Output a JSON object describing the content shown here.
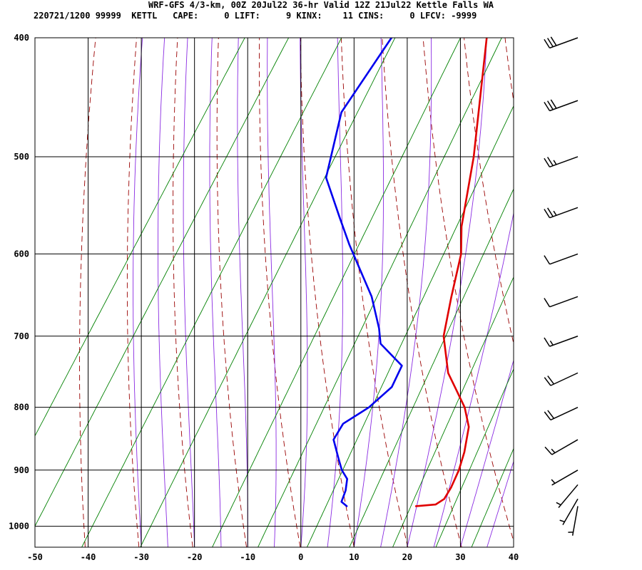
{
  "header": {
    "title": "WRF-GFS 4/3-km, 00Z 20Jul22 36-hr Valid 12Z 21Jul22 Kettle Falls WA",
    "subtitle": "220721/1200 99999  KETTL   CAPE:     0 LIFT:     9 KINX:    11 CINS:     0 LFCV: -9999"
  },
  "chart_data": {
    "type": "line",
    "subtype": "skew-T log-p sounding",
    "y_scale": "log",
    "y_reversed": true,
    "ylim": [
      1040,
      400
    ],
    "xlim": [
      -50,
      40
    ],
    "x_ticks": [
      -50,
      -40,
      -30,
      -20,
      -10,
      0,
      10,
      20,
      30,
      40
    ],
    "y_ticks": [
      400,
      500,
      600,
      700,
      800,
      900,
      1000
    ],
    "grid": true,
    "series": [
      {
        "role": "temperature",
        "color": "#e00000",
        "points": [
          [
            -22.6,
            400
          ],
          [
            -11.6,
            500
          ],
          [
            -6,
            570
          ],
          [
            -3,
            600
          ],
          [
            0,
            650
          ],
          [
            3,
            700
          ],
          [
            8,
            750
          ],
          [
            15,
            800
          ],
          [
            18,
            830
          ],
          [
            20,
            870
          ],
          [
            21,
            900
          ],
          [
            21.5,
            930
          ],
          [
            21.5,
            950
          ],
          [
            20.5,
            960
          ],
          [
            17,
            963
          ]
        ]
      },
      {
        "role": "dewpoint",
        "color": "#0000ee",
        "points": [
          [
            -40.5,
            400
          ],
          [
            -41.5,
            460
          ],
          [
            -37,
            520
          ],
          [
            -30,
            560
          ],
          [
            -25,
            590
          ],
          [
            -15,
            650
          ],
          [
            -10,
            690
          ],
          [
            -8,
            710
          ],
          [
            -1.5,
            740
          ],
          [
            -1,
            770
          ],
          [
            -3,
            800
          ],
          [
            -6,
            825
          ],
          [
            -6,
            850
          ],
          [
            -3,
            880
          ],
          [
            -1,
            900
          ],
          [
            1,
            915
          ],
          [
            2,
            935
          ],
          [
            2.5,
            955
          ],
          [
            4,
            963
          ]
        ]
      }
    ],
    "background_lines": {
      "isotherm_color": "#000000",
      "dry_adiabat_color": "#9a0000",
      "moist_adiabat_color": "#8a2be2",
      "mixing_ratio_color": "#008000"
    },
    "wind_barbs": [
      {
        "pressure": 400,
        "dir_deg": 250,
        "speed_kt": 30
      },
      {
        "pressure": 450,
        "dir_deg": 250,
        "speed_kt": 30
      },
      {
        "pressure": 500,
        "dir_deg": 250,
        "speed_kt": 25
      },
      {
        "pressure": 550,
        "dir_deg": 250,
        "speed_kt": 25
      },
      {
        "pressure": 600,
        "dir_deg": 250,
        "speed_kt": 10
      },
      {
        "pressure": 650,
        "dir_deg": 250,
        "speed_kt": 10
      },
      {
        "pressure": 700,
        "dir_deg": 250,
        "speed_kt": 15
      },
      {
        "pressure": 750,
        "dir_deg": 245,
        "speed_kt": 20
      },
      {
        "pressure": 800,
        "dir_deg": 245,
        "speed_kt": 20
      },
      {
        "pressure": 850,
        "dir_deg": 240,
        "speed_kt": 15
      },
      {
        "pressure": 900,
        "dir_deg": 240,
        "speed_kt": 5
      },
      {
        "pressure": 925,
        "dir_deg": 220,
        "speed_kt": 5
      },
      {
        "pressure": 950,
        "dir_deg": 210,
        "speed_kt": 5
      },
      {
        "pressure": 963,
        "dir_deg": 190,
        "speed_kt": 5
      }
    ]
  }
}
